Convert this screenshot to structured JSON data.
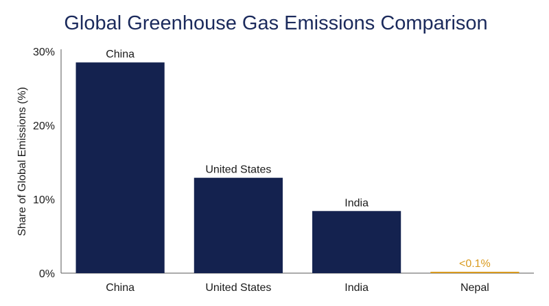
{
  "chart_data": {
    "type": "bar",
    "title": "Global Greenhouse Gas Emissions Comparison",
    "xlabel": "",
    "ylabel": "Share of Global Emissions (%)",
    "ylim": [
      0,
      30
    ],
    "y_ticks": [
      "0%",
      "10%",
      "20%",
      "30%"
    ],
    "y_tick_values": [
      0,
      10,
      20,
      30
    ],
    "categories": [
      "China",
      "United States",
      "India",
      "Nepal"
    ],
    "values": [
      28.5,
      12.9,
      8.4,
      0.1
    ],
    "data_labels": [
      "China",
      "United States",
      "India",
      "<0.1%"
    ],
    "colors": [
      "#14224f",
      "#14224f",
      "#14224f",
      "#d99a1e"
    ],
    "label_colors": [
      "#1a1a1a",
      "#1a1a1a",
      "#1a1a1a",
      "#d99a1e"
    ],
    "grid": false,
    "legend": "none"
  }
}
